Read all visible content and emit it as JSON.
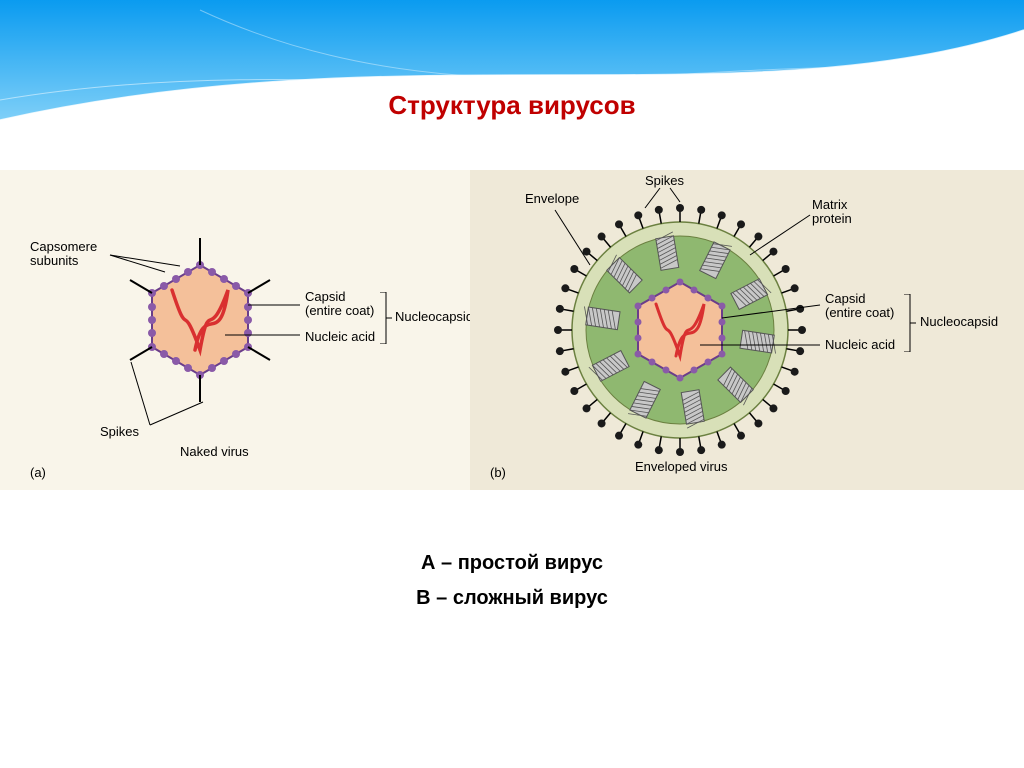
{
  "title": "Структура вирусов",
  "captions": {
    "a": "А – простой вирус",
    "b": "В – сложный вирус"
  },
  "panel_a": {
    "letter": "(a)",
    "name": "Naked virus",
    "labels": {
      "capsomere": "Capsomere\nsubunits",
      "capsid": "Capsid\n(entire coat)",
      "nucleic": "Nucleic acid",
      "nucleocapsid": "Nucleocapsid",
      "spikes": "Spikes"
    },
    "colors": {
      "capsid_fill": "#f4c09a",
      "capsid_border": "#6a3d8a",
      "capsomere": "#8a5aa8",
      "nucleic_acid": "#d93030",
      "spike": "#000000",
      "bg": "#f9f5ea"
    }
  },
  "panel_b": {
    "letter": "(b)",
    "name": "Enveloped virus",
    "labels": {
      "envelope": "Envelope",
      "spikes": "Spikes",
      "matrix": "Matrix\nprotein",
      "capsid": "Capsid\n(entire coat)",
      "nucleic": "Nucleic acid",
      "nucleocapsid": "Nucleocapsid"
    },
    "colors": {
      "envelope_outer": "#d8e0b8",
      "envelope_inner": "#8fb870",
      "matrix_fill": "#c8c8c8",
      "matrix_hatch": "#555555",
      "capsid_fill": "#f4c09a",
      "capsid_border": "#6a3d8a",
      "capsomere": "#8a5aa8",
      "nucleic_acid": "#d93030",
      "spike_stem": "#000000",
      "spike_head": "#1a1a1a",
      "bg": "#efe9d8"
    }
  },
  "style": {
    "title_color": "#c00000",
    "title_fontsize": 26,
    "label_fontsize": 13,
    "caption_fontsize": 20,
    "wave_top": "#0a9bf0",
    "wave_mid": "#3cb5f5",
    "wave_line": "#ffffff",
    "diagram_bg": "#f5f0e2"
  }
}
